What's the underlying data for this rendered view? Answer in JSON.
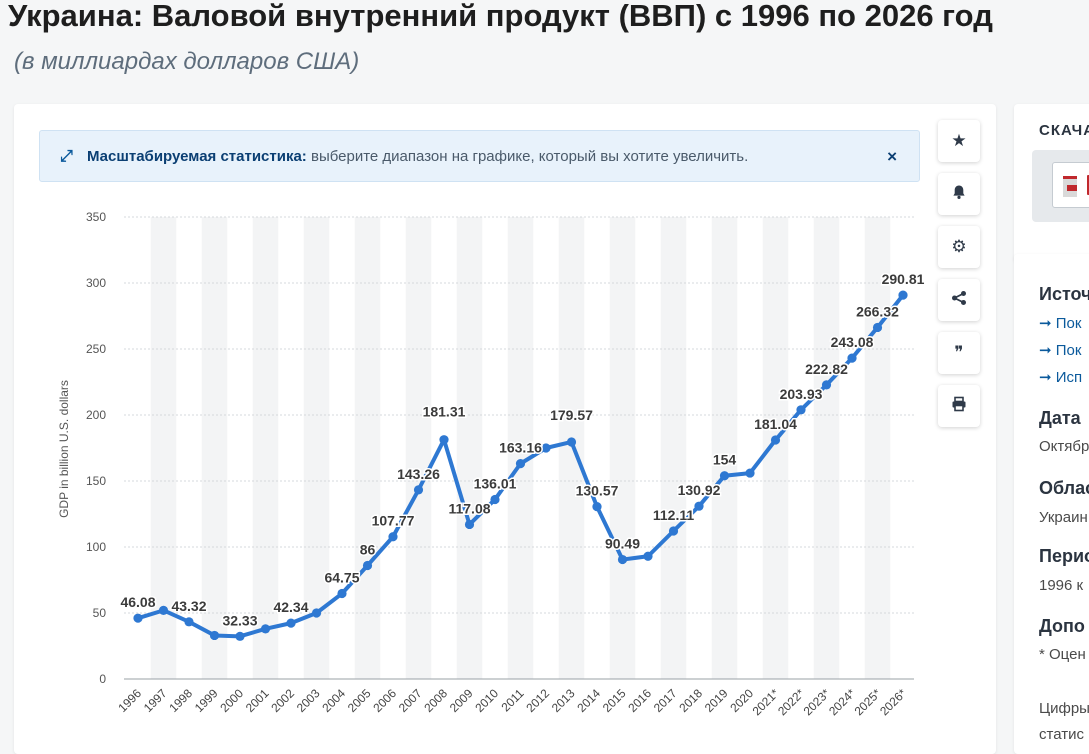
{
  "page": {
    "title": "Украина: Валовой внутренний продукт (ВВП) с 1996 по 2026 год",
    "subtitle": "(в миллиардах долларов США)"
  },
  "info_bar": {
    "bold": "Масштабируемая статистика:",
    "text": " выберите диапазон на графике, который вы хотите увеличить.",
    "close": "×"
  },
  "toolbar": [
    {
      "name": "star-icon",
      "glyph": "★"
    },
    {
      "name": "bell-icon",
      "glyph": "🔔"
    },
    {
      "name": "gear-icon",
      "glyph": "⚙"
    },
    {
      "name": "share-icon",
      "glyph": "<"
    },
    {
      "name": "quote-icon",
      "glyph": "❞"
    },
    {
      "name": "print-icon",
      "glyph": "⎙"
    }
  ],
  "side_download": {
    "heading": "СКАЧА"
  },
  "side_info": {
    "source_h": "Источ",
    "links": [
      "Пок",
      "Пок",
      "Исп"
    ],
    "date_h": "Дата",
    "date_v": "Октябр",
    "region_h": "Облас",
    "region_v": "Украин",
    "period_h": "Перио",
    "period_v": "1996 к",
    "extra_h": "Допо",
    "extra_v": "* Оцен",
    "foot1": "Цифры",
    "foot2": "статис"
  },
  "colors": {
    "line": "#2e78d2",
    "label": "#3b3b3b"
  },
  "chart_data": {
    "type": "line",
    "ylabel": "GDP in billion U.S. dollars",
    "xlabel": "",
    "ylim": [
      0,
      350
    ],
    "yticks": [
      0,
      50,
      100,
      150,
      200,
      250,
      300,
      350
    ],
    "categories": [
      "1996",
      "1997",
      "1998",
      "1999",
      "2000",
      "2001",
      "2002",
      "2003",
      "2004",
      "2005",
      "2006",
      "2007",
      "2008",
      "2009",
      "2010",
      "2011",
      "2012",
      "2013",
      "2014",
      "2015",
      "2016",
      "2017",
      "2018",
      "2019",
      "2020",
      "2021*",
      "2022*",
      "2023*",
      "2024*",
      "2025*",
      "2026*"
    ],
    "values": [
      46.08,
      52,
      43.32,
      33,
      32.33,
      38,
      42.34,
      50,
      64.75,
      86,
      107.77,
      143.26,
      181.31,
      117.08,
      136.01,
      163.16,
      175,
      179.57,
      130.57,
      90.49,
      93,
      112.11,
      130.92,
      154,
      156,
      181.04,
      203.93,
      222.82,
      243.08,
      266.32,
      290.81
    ],
    "labels": [
      "46.08",
      "",
      "43.32",
      "",
      "32.33",
      "",
      "42.34",
      "",
      "64.75",
      "86",
      "107.77",
      "143.26",
      "181.31",
      "117.08",
      "136.01",
      "163.16",
      "",
      "179.57",
      "130.57",
      "90.49",
      "",
      "112.11",
      "130.92",
      "154",
      "",
      "181.04",
      "203.93",
      "222.82",
      "243.08",
      "266.32",
      "290.81"
    ]
  }
}
